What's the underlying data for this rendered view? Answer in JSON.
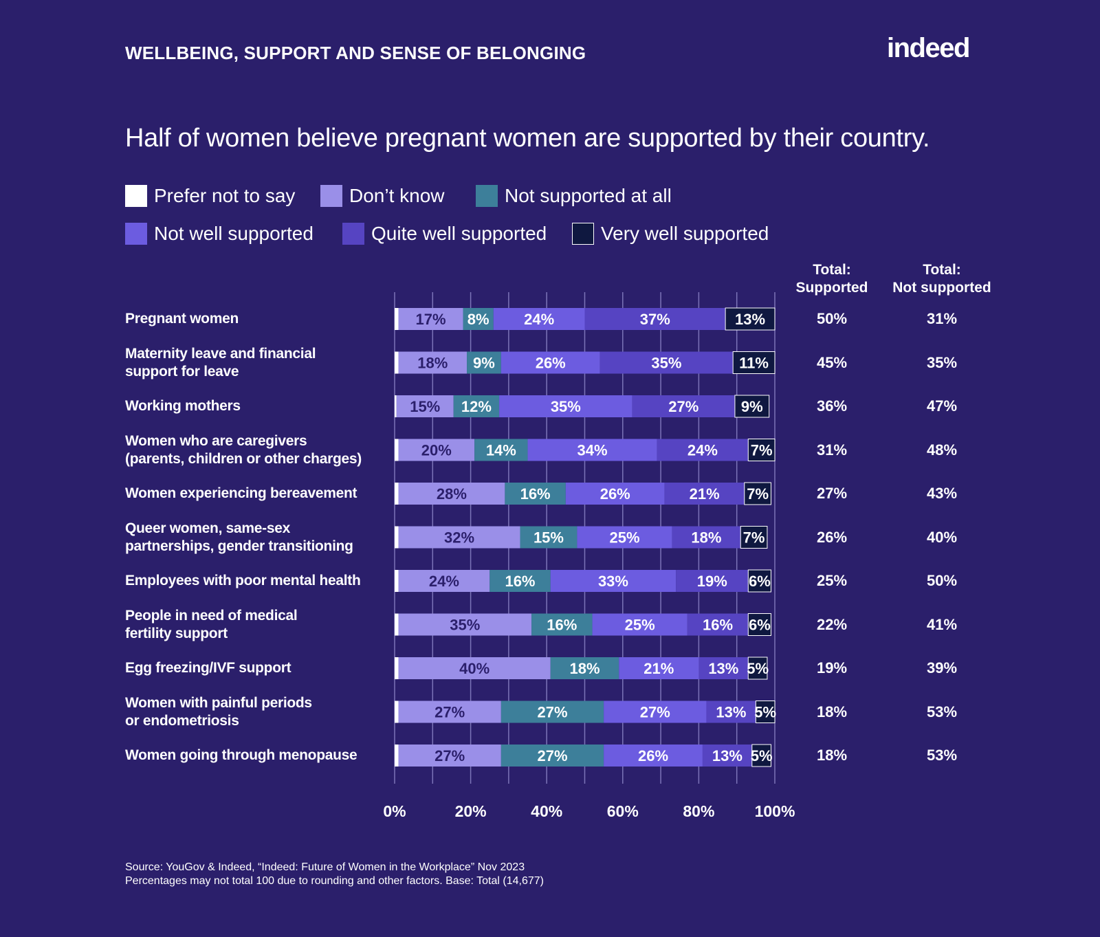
{
  "header": {
    "section_title": "WELLBEING, SUPPORT AND SENSE OF BELONGING",
    "brand": "indeed"
  },
  "colors": {
    "background": "#2b1f6b",
    "Prefer not to say": "#ffffff",
    "Don’t know": "#9a8fe8",
    "Not supported at all": "#3d7f9a",
    "Not well supported": "#6c5ce0",
    "Quite well supported": "#5644c2",
    "Very well supported": "#0f1840"
  },
  "chart_data": {
    "type": "bar",
    "orientation": "horizontal-stacked",
    "title": "Half of women believe pregnant women are supported by their country.",
    "legend_placement": "top-left",
    "xlim": [
      0,
      100
    ],
    "x_ticks": [
      "0%",
      "20%",
      "40%",
      "60%",
      "80%",
      "100%"
    ],
    "grid": true,
    "categories": [
      [
        "Pregnant women"
      ],
      [
        "Maternity leave and financial",
        "support for leave"
      ],
      [
        "Working mothers"
      ],
      [
        "Women who are caregivers",
        "(parents, children or other charges)"
      ],
      [
        "Women experiencing bereavement"
      ],
      [
        "Queer women, same-sex",
        "partnerships, gender transitioning"
      ],
      [
        "Employees with poor mental health"
      ],
      [
        "People in need of medical",
        "fertility support"
      ],
      [
        "Egg freezing/IVF support"
      ],
      [
        "Women with painful periods",
        "or endometriosis"
      ],
      [
        "Women going through menopause"
      ]
    ],
    "series": [
      {
        "name": "Prefer not to say",
        "values": [
          1,
          1,
          0.5,
          1,
          1,
          1,
          1,
          1,
          1,
          1,
          1
        ],
        "labels": [
          "",
          "",
          "",
          "",
          "",
          "",
          "",
          "",
          "",
          "",
          ""
        ]
      },
      {
        "name": "Don’t know",
        "values": [
          17,
          18,
          15,
          20,
          28,
          32,
          24,
          35,
          40,
          27,
          27
        ],
        "labels": [
          "17%",
          "18%",
          "15%",
          "20%",
          "28%",
          "32%",
          "24%",
          "35%",
          "40%",
          "27%",
          "27%"
        ]
      },
      {
        "name": "Not supported at all",
        "values": [
          8,
          9,
          12,
          14,
          16,
          15,
          16,
          16,
          18,
          27,
          27
        ],
        "labels": [
          "8%",
          "9%",
          "12%",
          "14%",
          "16%",
          "15%",
          "16%",
          "16%",
          "18%",
          "27%",
          "27%"
        ]
      },
      {
        "name": "Not well supported",
        "values": [
          24,
          26,
          35,
          34,
          26,
          25,
          33,
          25,
          21,
          27,
          26
        ],
        "labels": [
          "24%",
          "26%",
          "35%",
          "34%",
          "26%",
          "25%",
          "33%",
          "25%",
          "21%",
          "27%",
          "26%"
        ]
      },
      {
        "name": "Quite well supported",
        "values": [
          37,
          35,
          27,
          24,
          21,
          18,
          19,
          16,
          13,
          13,
          13
        ],
        "labels": [
          "37%",
          "35%",
          "27%",
          "24%",
          "21%",
          "18%",
          "19%",
          "16%",
          "13%",
          "13%",
          "13%"
        ]
      },
      {
        "name": "Very well supported",
        "values": [
          13,
          11,
          9,
          7,
          7,
          7,
          6,
          6,
          5,
          5,
          5
        ],
        "labels": [
          "13%",
          "11%",
          "9%",
          "7%",
          "7%",
          "7%",
          "6%",
          "6%",
          "5%",
          "5%",
          "5%"
        ]
      }
    ],
    "totals_headers": {
      "supported": [
        "Total:",
        "Supported"
      ],
      "not_supported": [
        "Total:",
        "Not supported"
      ]
    },
    "totals_supported": [
      "50%",
      "45%",
      "36%",
      "31%",
      "27%",
      "26%",
      "25%",
      "22%",
      "19%",
      "18%",
      "18%"
    ],
    "totals_not_supported": [
      "31%",
      "35%",
      "47%",
      "48%",
      "43%",
      "40%",
      "50%",
      "41%",
      "39%",
      "53%",
      "53%"
    ]
  },
  "legend": [
    [
      "Prefer not to say",
      "Don’t know",
      "Not supported at all"
    ],
    [
      "Not well supported",
      "Quite well supported",
      "Very well supported"
    ]
  ],
  "footer": {
    "source": "Source: YouGov & Indeed, “Indeed: Future of Women in the Workplace” Nov 2023",
    "note": "Percentages may not total 100 due to rounding and other factors. Base: Total (14,677)"
  }
}
